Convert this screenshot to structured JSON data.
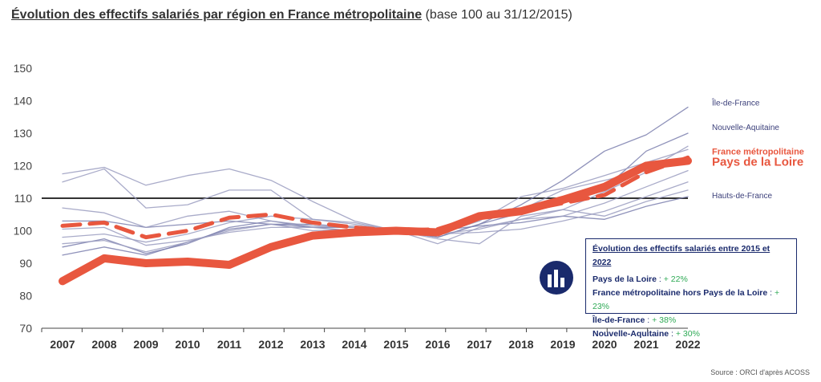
{
  "title": {
    "main": "Évolution des effectifs salariés par région en France métropolitaine",
    "sub": " (base 100 au 31/12/2015)"
  },
  "chart_data": {
    "type": "line",
    "x": [
      "2007",
      "2008",
      "2009",
      "2010",
      "2011",
      "2012",
      "2013",
      "2014",
      "2015",
      "2016",
      "2017",
      "2018",
      "2019",
      "2020",
      "2021",
      "2022"
    ],
    "ylim": [
      70,
      150
    ],
    "yticks": [
      70,
      80,
      90,
      100,
      110,
      120,
      130,
      140,
      150
    ],
    "grid": false,
    "reference_line": 110,
    "series": [
      {
        "name": "Pays de la Loire",
        "color": "#e8573f",
        "style": "thick",
        "values": [
          84.5,
          91.5,
          90,
          90.5,
          89.5,
          95,
          98.5,
          99.5,
          100,
          99.5,
          104.5,
          106,
          109.5,
          113.5,
          120,
          121.5
        ]
      },
      {
        "name": "France métropolitaine",
        "color": "#e8573f",
        "style": "dashed",
        "values": [
          101.5,
          102.5,
          98,
          100,
          104,
          105,
          102.5,
          101,
          100,
          100.5,
          104.5,
          106,
          108.5,
          111,
          118,
          122.5
        ]
      },
      {
        "name": "Île-de-France",
        "color": "#7b7fae",
        "style": "thin",
        "values": [
          95,
          97.5,
          93,
          96,
          101,
          103,
          101,
          100,
          100,
          98,
          102,
          108,
          115.5,
          124.5,
          129.5,
          138
        ]
      },
      {
        "name": "Nouvelle-Aquitaine",
        "color": "#7b7fae",
        "style": "thin",
        "values": [
          92.5,
          95,
          92.5,
          96.5,
          100.5,
          102,
          101,
          101,
          100,
          98,
          102,
          105.5,
          109,
          113,
          124.5,
          130
        ]
      },
      {
        "name": "Hauts-de-France",
        "color": "#7b7fae",
        "style": "thin",
        "values": [
          103,
          103,
          101,
          102,
          103,
          102,
          102,
          101,
          100,
          100,
          101.5,
          102.5,
          104.5,
          103.5,
          107.5,
          110.5
        ]
      },
      {
        "name": "",
        "color": "#9a9cc0",
        "style": "thin",
        "values": [
          117.5,
          119.5,
          114,
          117,
          119,
          115.5,
          109,
          103,
          100,
          99,
          99.5,
          100.5,
          103,
          106,
          110.5,
          115
        ]
      },
      {
        "name": "",
        "color": "#9a9cc0",
        "style": "thin",
        "values": [
          115,
          119,
          107,
          108,
          112.5,
          112.5,
          103.5,
          102,
          100,
          100.5,
          104,
          106.5,
          112.5,
          115.5,
          118.5,
          126
        ]
      },
      {
        "name": "",
        "color": "#9a9cc0",
        "style": "thin",
        "values": [
          107,
          105.5,
          101,
          104.5,
          106,
          103,
          101.5,
          101,
          100,
          99,
          100.5,
          103.5,
          106.5,
          112,
          118,
          123
        ]
      },
      {
        "name": "",
        "color": "#9a9cc0",
        "style": "thin",
        "values": [
          100.5,
          101,
          95.5,
          97,
          99.5,
          101,
          101,
          101.5,
          100,
          97.5,
          96,
          104.5,
          106.5,
          104.5,
          109,
          112.5
        ]
      },
      {
        "name": "",
        "color": "#9a9cc0",
        "style": "thin",
        "values": [
          98,
          99,
          96.5,
          99,
          102.5,
          104.5,
          103.5,
          102.5,
          100,
          96,
          101,
          103.5,
          104.5,
          108.5,
          113.5,
          118.5
        ]
      },
      {
        "name": "",
        "color": "#9a9cc0",
        "style": "thin",
        "values": [
          96,
          97,
          93.5,
          96.5,
          100,
          102,
          100,
          100.5,
          100,
          99,
          103,
          110.5,
          113,
          117,
          121,
          125
        ]
      }
    ],
    "region_labels": [
      {
        "text": "Île-de-France",
        "y": 139.5,
        "color": "#3b3f7a"
      },
      {
        "text": "Nouvelle-Aquitaine",
        "y": 132,
        "color": "#3b3f7a"
      },
      {
        "text": "France métropolitaine",
        "y": 124.5,
        "color": "#e8573f",
        "emph": "bold"
      },
      {
        "text": "Pays de la Loire",
        "y": 121,
        "color": "#e8573f",
        "emph": "big"
      },
      {
        "text": "Hauts-de-France",
        "y": 111,
        "color": "#3b3f7a"
      }
    ]
  },
  "infobox": {
    "title": "Évolution des effectifs salariés entre 2015 et 2022",
    "rows": [
      {
        "label": "Pays de la Loire",
        "sep": " : ",
        "value": "+ 22%"
      },
      {
        "label": "France métropolitaine hors Pays de la Loire",
        "sep": " : ",
        "value": "+ 23%"
      },
      {
        "label": "Île-de-France",
        "sep": " : ",
        "value": "+ 38%"
      },
      {
        "label": "Nouvelle-Aquitaine",
        "sep": " : ",
        "value": "+ 30%"
      }
    ]
  },
  "logo": {
    "icon": "orci-logo-icon",
    "color": "#1a2a6c"
  },
  "source": "Source : ORCI d'après ACOSS"
}
